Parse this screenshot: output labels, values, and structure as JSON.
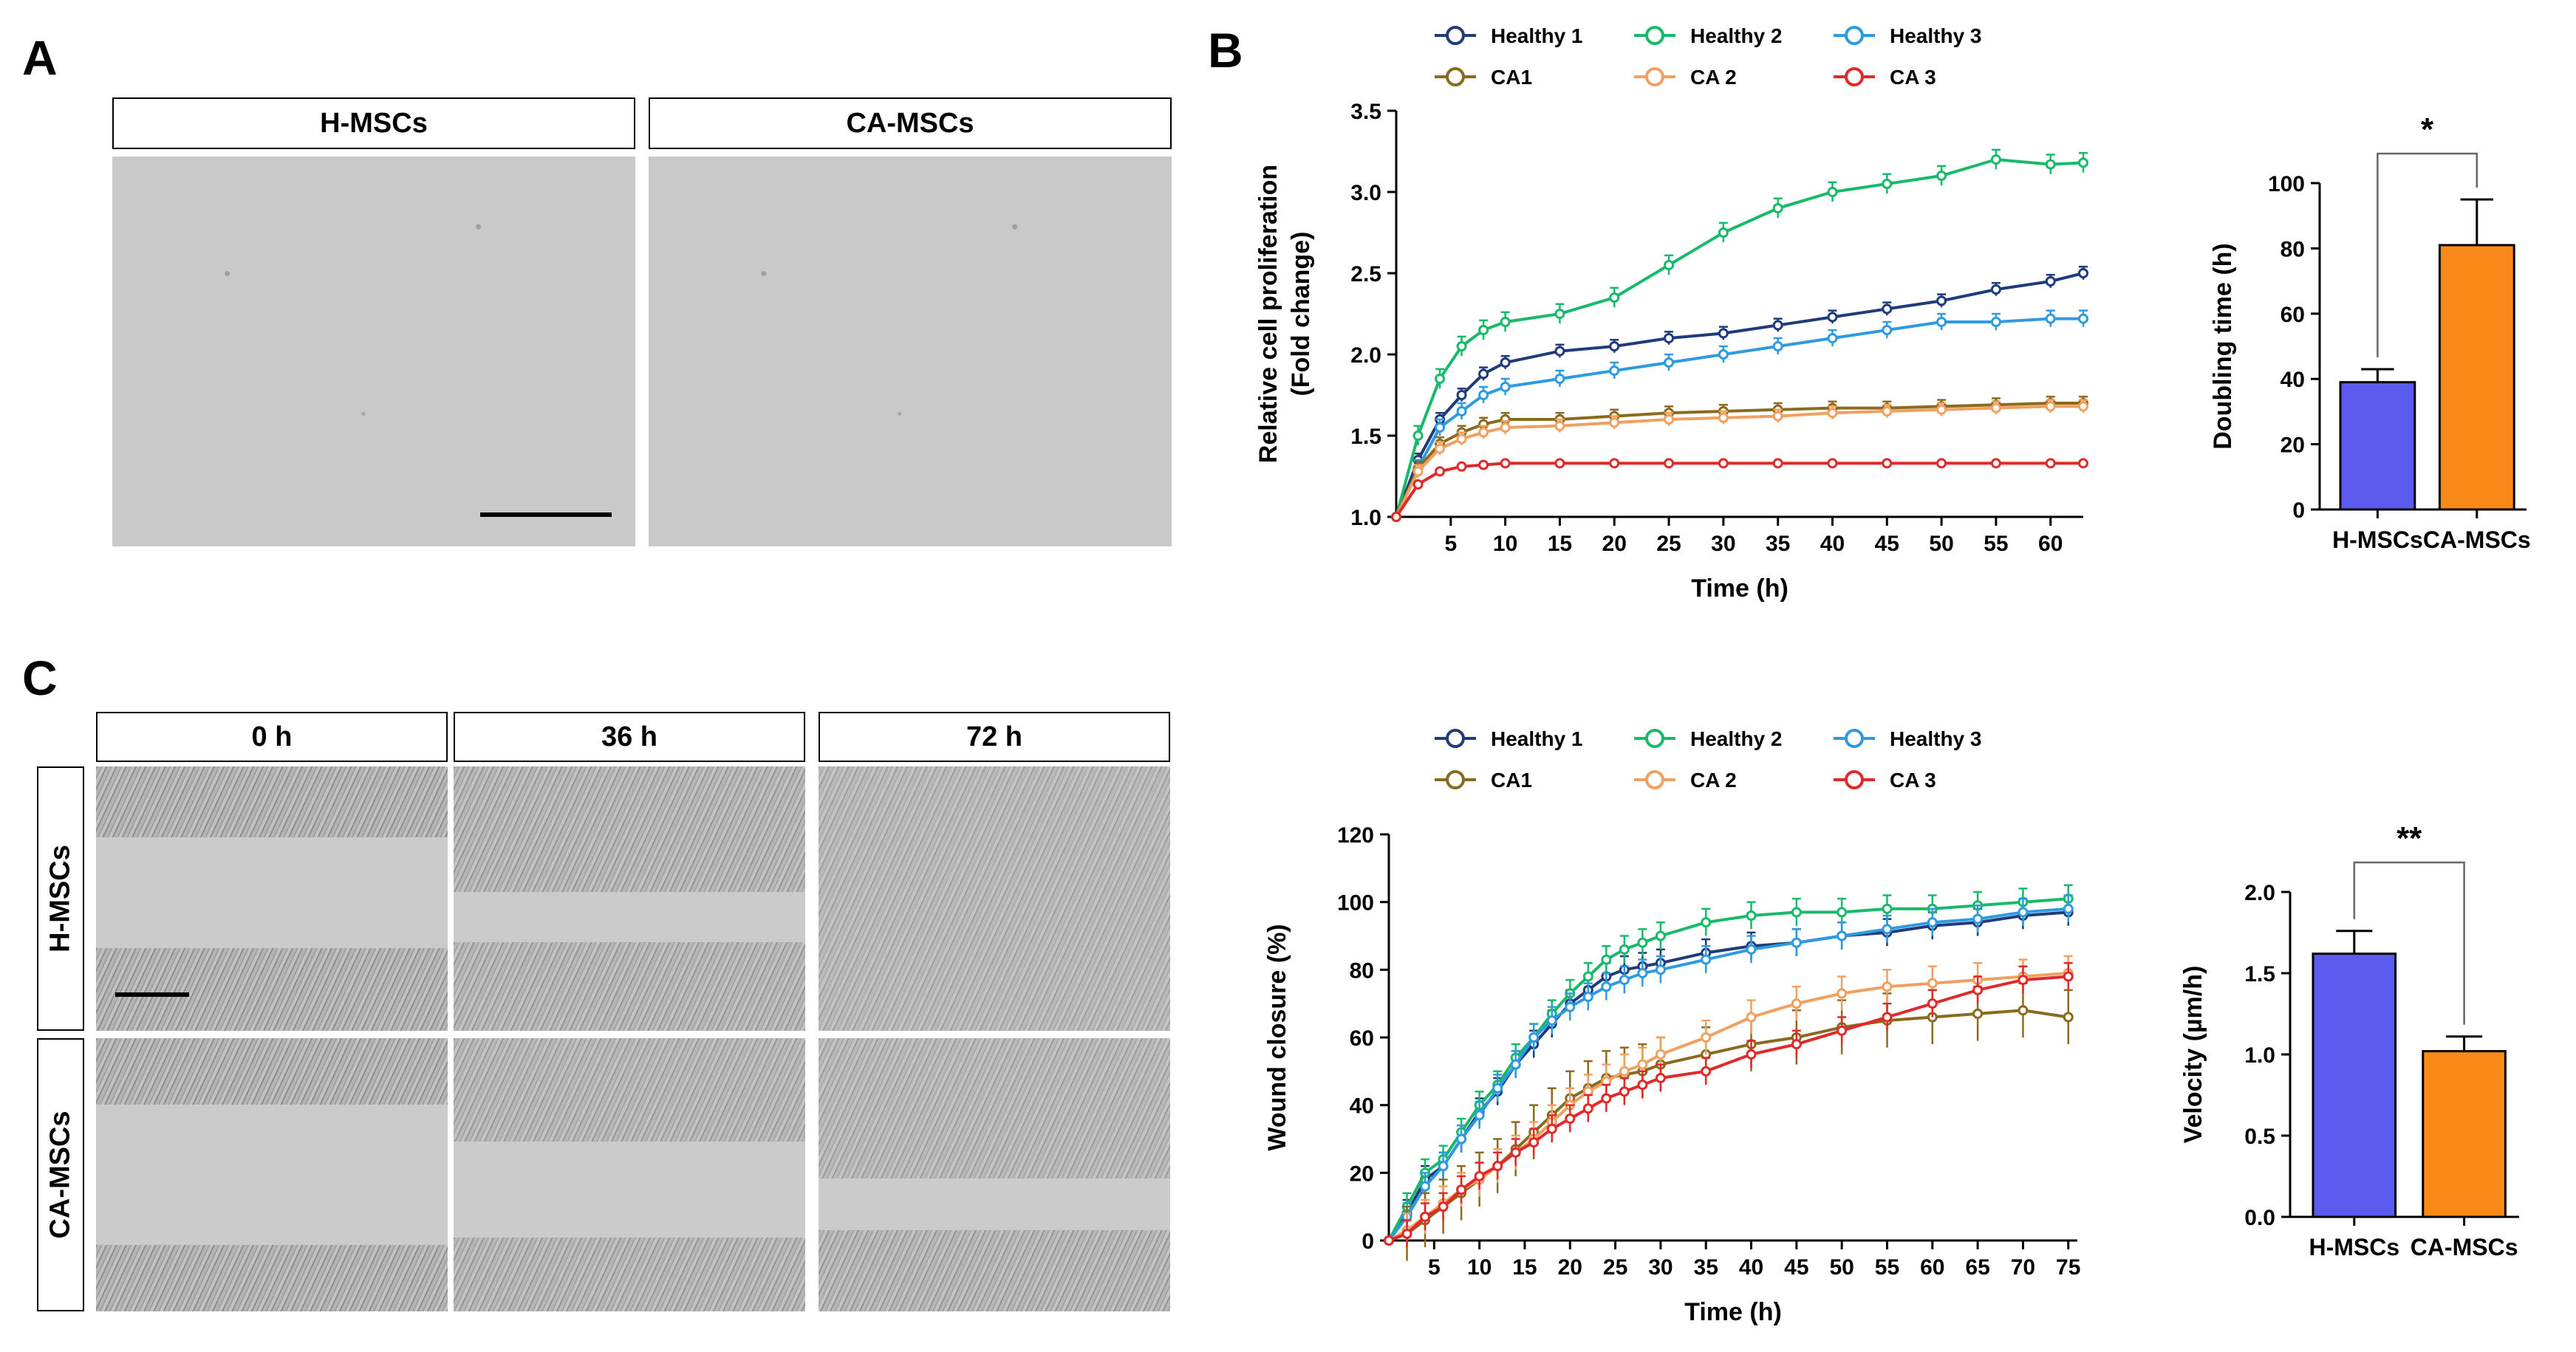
{
  "panels": {
    "a": "A",
    "b": "B",
    "c": "C"
  },
  "panel_a": {
    "headers": [
      "H-MSCs",
      "CA-MSCs"
    ]
  },
  "panel_c": {
    "col_headers": [
      "0 h",
      "36 h",
      "72 h"
    ],
    "row_headers": [
      "H-MSCs",
      "CA-MSCs"
    ]
  },
  "colors": {
    "healthy1": "#1f3b7a",
    "healthy2": "#18b96a",
    "healthy3": "#2e9be0",
    "ca1": "#8a6a1e",
    "ca2": "#f0a060",
    "ca3": "#e02a2a",
    "bar_h": "#5b5bf0",
    "bar_ca": "#f98a1a"
  },
  "chart_data": [
    {
      "id": "proliferation",
      "type": "line",
      "title": "",
      "xlabel": "Time (h)",
      "ylabel": [
        "Relative cell proliferation",
        "(Fold change)"
      ],
      "xlim": [
        0,
        63
      ],
      "ylim": [
        1.0,
        3.5
      ],
      "xticks": [
        5,
        10,
        15,
        20,
        25,
        30,
        35,
        40,
        45,
        50,
        55,
        60
      ],
      "yticks": [
        1.0,
        1.5,
        2.0,
        2.5,
        3.0,
        3.5
      ],
      "ytick_labels": [
        "1.0",
        "1.5",
        "2.0",
        "2.5",
        "3.0",
        "3.5"
      ],
      "legend": [
        "Healthy 1",
        "Healthy 2",
        "Healthy 3",
        "CA1",
        "CA 2",
        "CA 3"
      ],
      "series": [
        {
          "name": "Healthy 1",
          "x": [
            0,
            2,
            4,
            6,
            8,
            10,
            15,
            20,
            25,
            30,
            35,
            40,
            45,
            50,
            55,
            60,
            63
          ],
          "y": [
            1.0,
            1.35,
            1.6,
            1.75,
            1.88,
            1.95,
            2.02,
            2.05,
            2.1,
            2.13,
            2.18,
            2.23,
            2.28,
            2.33,
            2.4,
            2.45,
            2.5
          ],
          "err": 0.04
        },
        {
          "name": "Healthy 2",
          "x": [
            0,
            2,
            4,
            6,
            8,
            10,
            15,
            20,
            25,
            30,
            35,
            40,
            45,
            50,
            55,
            60,
            63
          ],
          "y": [
            1.0,
            1.5,
            1.85,
            2.05,
            2.15,
            2.2,
            2.25,
            2.35,
            2.55,
            2.75,
            2.9,
            3.0,
            3.05,
            3.1,
            3.2,
            3.17,
            3.18
          ],
          "err": 0.06
        },
        {
          "name": "Healthy 3",
          "x": [
            0,
            2,
            4,
            6,
            8,
            10,
            15,
            20,
            25,
            30,
            35,
            40,
            45,
            50,
            55,
            60,
            63
          ],
          "y": [
            1.0,
            1.3,
            1.55,
            1.65,
            1.75,
            1.8,
            1.85,
            1.9,
            1.95,
            2.0,
            2.05,
            2.1,
            2.15,
            2.2,
            2.2,
            2.22,
            2.22
          ],
          "err": 0.05
        },
        {
          "name": "CA1",
          "x": [
            0,
            2,
            4,
            6,
            8,
            10,
            15,
            20,
            25,
            30,
            35,
            40,
            45,
            50,
            55,
            60,
            63
          ],
          "y": [
            1.0,
            1.3,
            1.45,
            1.52,
            1.57,
            1.6,
            1.6,
            1.62,
            1.64,
            1.65,
            1.66,
            1.67,
            1.67,
            1.68,
            1.69,
            1.7,
            1.7
          ],
          "err": 0.04
        },
        {
          "name": "CA 2",
          "x": [
            0,
            2,
            4,
            6,
            8,
            10,
            15,
            20,
            25,
            30,
            35,
            40,
            45,
            50,
            55,
            60,
            63
          ],
          "y": [
            1.0,
            1.28,
            1.42,
            1.48,
            1.52,
            1.55,
            1.56,
            1.58,
            1.6,
            1.61,
            1.62,
            1.64,
            1.65,
            1.66,
            1.67,
            1.68,
            1.68
          ],
          "err": 0.04
        },
        {
          "name": "CA 3",
          "x": [
            0,
            2,
            4,
            6,
            8,
            10,
            15,
            20,
            25,
            30,
            35,
            40,
            45,
            50,
            55,
            60,
            63
          ],
          "y": [
            1.0,
            1.2,
            1.28,
            1.31,
            1.32,
            1.33,
            1.33,
            1.33,
            1.33,
            1.33,
            1.33,
            1.33,
            1.33,
            1.33,
            1.33,
            1.33,
            1.33
          ],
          "err": 0.01
        }
      ]
    },
    {
      "id": "doubling",
      "type": "bar",
      "categories": [
        "H-MSCs",
        "CA-MSCs"
      ],
      "values": [
        39,
        81
      ],
      "errors": [
        4,
        14
      ],
      "ylabel": "Doubling time (h)",
      "ylim": [
        0,
        100
      ],
      "yticks": [
        0,
        20,
        40,
        60,
        80,
        100
      ],
      "ytick_labels": [
        "0",
        "20",
        "40",
        "60",
        "80",
        "100"
      ],
      "significance": "*"
    },
    {
      "id": "wound",
      "type": "line",
      "xlabel": "Time (h)",
      "ylabel": "Wound closure (%)",
      "xlim": [
        0,
        76
      ],
      "ylim": [
        0,
        120
      ],
      "xticks": [
        5,
        10,
        15,
        20,
        25,
        30,
        35,
        40,
        45,
        50,
        55,
        60,
        65,
        70,
        75
      ],
      "yticks": [
        0,
        20,
        40,
        60,
        80,
        100,
        120
      ],
      "ytick_labels": [
        "0",
        "20",
        "40",
        "60",
        "80",
        "100",
        "120"
      ],
      "legend": [
        "Healthy 1",
        "Healthy 2",
        "Healthy 3",
        "CA1",
        "CA 2",
        "CA 3"
      ],
      "series": [
        {
          "name": "Healthy 1",
          "x": [
            0,
            2,
            4,
            6,
            8,
            10,
            12,
            14,
            16,
            18,
            20,
            22,
            24,
            26,
            28,
            30,
            35,
            40,
            45,
            50,
            55,
            60,
            65,
            70,
            75
          ],
          "y": [
            0,
            8,
            18,
            22,
            30,
            38,
            44,
            52,
            58,
            64,
            70,
            74,
            78,
            80,
            81,
            82,
            85,
            87,
            88,
            90,
            91,
            93,
            94,
            96,
            97
          ],
          "err": 4
        },
        {
          "name": "Healthy 2",
          "x": [
            0,
            2,
            4,
            6,
            8,
            10,
            12,
            14,
            16,
            18,
            20,
            22,
            24,
            26,
            28,
            30,
            35,
            40,
            45,
            50,
            55,
            60,
            65,
            70,
            75
          ],
          "y": [
            0,
            10,
            20,
            24,
            32,
            40,
            46,
            54,
            60,
            67,
            73,
            78,
            83,
            86,
            88,
            90,
            94,
            96,
            97,
            97,
            98,
            98,
            99,
            100,
            101
          ],
          "err": 4
        },
        {
          "name": "Healthy 3",
          "x": [
            0,
            2,
            4,
            6,
            8,
            10,
            12,
            14,
            16,
            18,
            20,
            22,
            24,
            26,
            28,
            30,
            35,
            40,
            45,
            50,
            55,
            60,
            65,
            70,
            75
          ],
          "y": [
            0,
            7,
            16,
            22,
            30,
            37,
            45,
            52,
            60,
            65,
            69,
            72,
            75,
            77,
            79,
            80,
            83,
            86,
            88,
            90,
            92,
            94,
            95,
            97,
            98
          ],
          "err": 4
        },
        {
          "name": "CA1",
          "x": [
            0,
            2,
            4,
            6,
            8,
            10,
            12,
            14,
            16,
            18,
            20,
            22,
            24,
            26,
            28,
            30,
            35,
            40,
            45,
            50,
            55,
            60,
            65,
            70,
            75
          ],
          "y": [
            0,
            2,
            6,
            10,
            14,
            18,
            22,
            27,
            32,
            37,
            42,
            45,
            48,
            49,
            50,
            52,
            55,
            58,
            60,
            63,
            65,
            66,
            67,
            68,
            66
          ],
          "err": 8
        },
        {
          "name": "CA 2",
          "x": [
            0,
            2,
            4,
            6,
            8,
            10,
            12,
            14,
            16,
            18,
            20,
            22,
            24,
            26,
            28,
            30,
            35,
            40,
            45,
            50,
            55,
            60,
            65,
            70,
            75
          ],
          "y": [
            0,
            3,
            7,
            11,
            15,
            18,
            22,
            26,
            30,
            35,
            40,
            44,
            47,
            50,
            52,
            55,
            60,
            66,
            70,
            73,
            75,
            76,
            77,
            78,
            79
          ],
          "err": 5
        },
        {
          "name": "CA 3",
          "x": [
            0,
            2,
            4,
            6,
            8,
            10,
            12,
            14,
            16,
            18,
            20,
            22,
            24,
            26,
            28,
            30,
            35,
            40,
            45,
            50,
            55,
            60,
            65,
            70,
            75
          ],
          "y": [
            0,
            2,
            7,
            10,
            15,
            19,
            22,
            26,
            29,
            33,
            36,
            39,
            42,
            44,
            46,
            48,
            50,
            55,
            58,
            62,
            66,
            70,
            74,
            77,
            78
          ],
          "err": 4
        }
      ]
    },
    {
      "id": "velocity",
      "type": "bar",
      "categories": [
        "H-MSCs",
        "CA-MSCs"
      ],
      "values": [
        1.62,
        1.02
      ],
      "errors": [
        0.14,
        0.09
      ],
      "ylabel": "Velocity (µm/h)",
      "ylim": [
        0,
        2.0
      ],
      "yticks": [
        0,
        0.5,
        1.0,
        1.5,
        2.0
      ],
      "ytick_labels": [
        "0.0",
        "0.5",
        "1.0",
        "1.5",
        "2.0"
      ],
      "significance": "**"
    }
  ]
}
